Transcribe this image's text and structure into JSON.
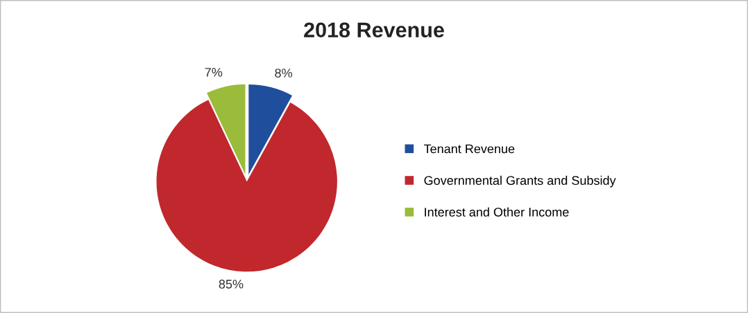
{
  "chart_data": {
    "type": "pie",
    "title": "2018 Revenue",
    "categories": [
      "Tenant Revenue",
      "Governmental Grants and Subsidy",
      "Interest and Other Income"
    ],
    "values": [
      8,
      85,
      7
    ],
    "colors": [
      "#1f4e9c",
      "#c0282d",
      "#9bbb3a"
    ],
    "value_labels": [
      "8%",
      "85%",
      "7%"
    ],
    "legend": "right"
  }
}
